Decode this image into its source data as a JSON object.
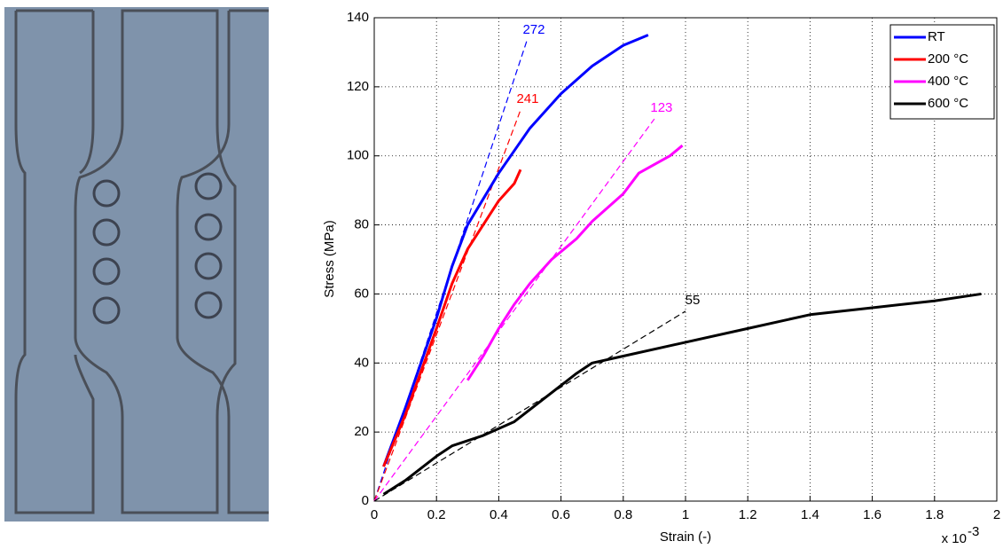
{
  "chart_data": {
    "type": "line",
    "xlabel": "Strain (-)",
    "ylabel": "Stress (MPa)",
    "x_multiplier": "x 10",
    "x_multiplier_exp": "-3",
    "xlim": [
      0,
      2
    ],
    "xticks": [
      0,
      0.2,
      0.4,
      0.6,
      0.8,
      1,
      1.2,
      1.4,
      1.6,
      1.8,
      2
    ],
    "ylim": [
      0,
      140
    ],
    "yticks": [
      0,
      20,
      40,
      60,
      80,
      100,
      120,
      140
    ],
    "grid": true,
    "legend": "upper right",
    "series": [
      {
        "name": "RT",
        "color": "#0000ff",
        "x": [
          0.03,
          0.1,
          0.2,
          0.25,
          0.3,
          0.4,
          0.5,
          0.6,
          0.7,
          0.8,
          0.88
        ],
        "y": [
          10,
          27,
          53,
          68,
          80,
          95,
          108,
          118,
          126,
          132,
          135
        ]
      },
      {
        "name": "200 °C",
        "color": "#ff0000",
        "x": [
          0.03,
          0.1,
          0.2,
          0.25,
          0.3,
          0.35,
          0.4,
          0.45,
          0.47
        ],
        "y": [
          10,
          25,
          50,
          63,
          73,
          80,
          87,
          92,
          96
        ]
      },
      {
        "name": "400 °C",
        "color": "#ff00ff",
        "x": [
          0.3,
          0.35,
          0.4,
          0.45,
          0.5,
          0.57,
          0.65,
          0.7,
          0.8,
          0.85,
          0.95,
          0.99
        ],
        "y": [
          35,
          42,
          50,
          57,
          63,
          70,
          76,
          81,
          89,
          95,
          100,
          103
        ]
      },
      {
        "name": "600 °C",
        "color": "#000000",
        "x": [
          0.03,
          0.1,
          0.2,
          0.25,
          0.35,
          0.45,
          0.55,
          0.65,
          0.7,
          0.8,
          1,
          1.2,
          1.4,
          1.6,
          1.8,
          1.95
        ],
        "y": [
          2,
          6,
          13,
          16,
          19,
          23,
          30,
          37,
          40,
          42,
          46,
          50,
          54,
          56,
          58,
          60
        ]
      }
    ],
    "fits": [
      {
        "slope": 272,
        "x_end": 0.49,
        "color": "#0000ff"
      },
      {
        "slope": 241,
        "x_end": 0.47,
        "color": "#ff0000"
      },
      {
        "slope": 123,
        "x_end": 0.9,
        "color": "#ff00ff"
      },
      {
        "slope": 55,
        "x_end": 1,
        "color": "#000000"
      }
    ]
  }
}
